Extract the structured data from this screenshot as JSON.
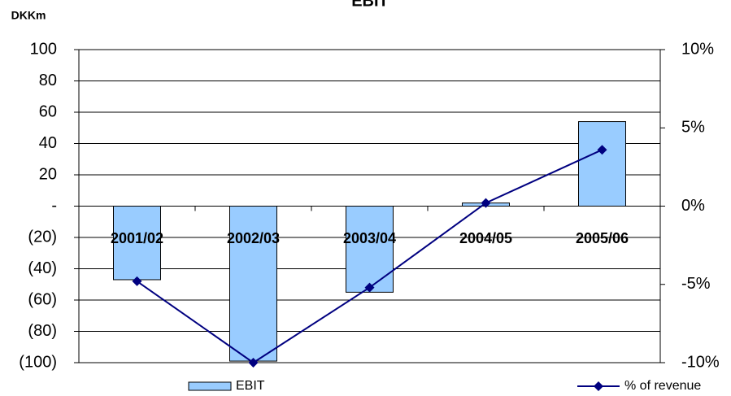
{
  "chart_data": {
    "type": "bar",
    "title": "EBIT",
    "y_axis_label": "DKKm",
    "categories": [
      "2001/02",
      "2002/03",
      "2003/04",
      "2004/05",
      "2005/06"
    ],
    "series": [
      {
        "name": "EBIT",
        "type": "bar",
        "color": "#99ccff",
        "axis": "y",
        "values": [
          -47,
          -99,
          -55,
          2,
          54
        ]
      },
      {
        "name": "% of revenue",
        "type": "line",
        "color": "#000080",
        "axis": "y2",
        "values": [
          -4.8,
          -10,
          -5.2,
          0.2,
          3.6
        ]
      }
    ],
    "ylim": [
      -100,
      100
    ],
    "yticks": [
      {
        "value": -100,
        "label": "(100)"
      },
      {
        "value": -80,
        "label": "(80)"
      },
      {
        "value": -60,
        "label": "(60)"
      },
      {
        "value": -40,
        "label": "(40)"
      },
      {
        "value": -20,
        "label": "(20)"
      },
      {
        "value": 0,
        "label": "-"
      },
      20,
      40,
      60,
      80,
      100
    ],
    "y2lim": [
      -10,
      10
    ],
    "y2ticks": [
      {
        "value": -10,
        "label": "-10%"
      },
      {
        "value": -5,
        "label": "-5%"
      },
      {
        "value": 0,
        "label": "0%"
      },
      {
        "value": 5,
        "label": "5%"
      },
      {
        "value": 10,
        "label": "10%"
      }
    ],
    "grid": true,
    "legend": "bottom"
  }
}
